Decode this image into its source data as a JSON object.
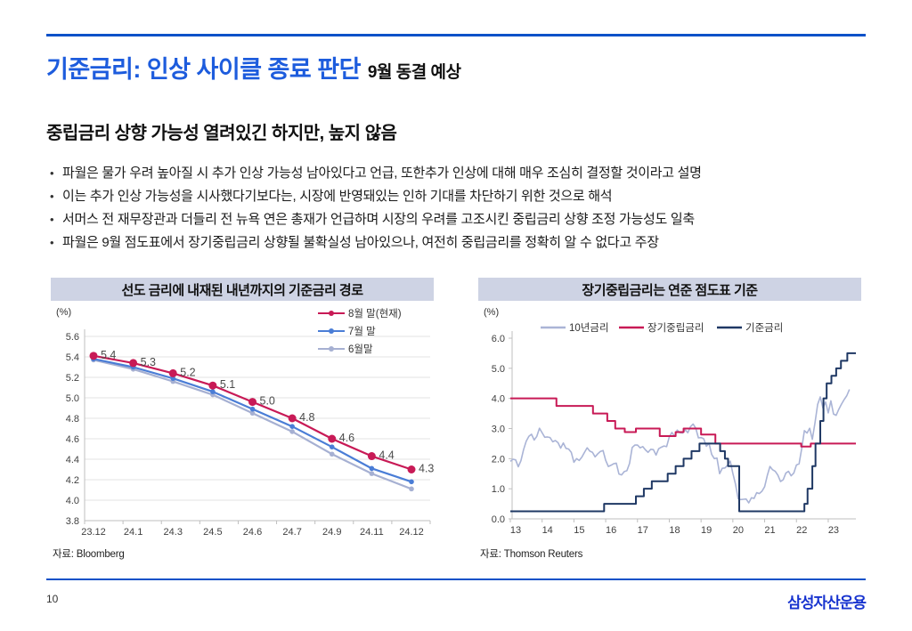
{
  "page": {
    "accent_rule_color": "#0b51c8",
    "title": "기준금리: 인상 사이클 종료 판단",
    "title_note": "9월 동결 예상",
    "title_color": "#1d5cdd",
    "section_heading": "중립금리 상향 가능성 열려있긴 하지만, 높지 않음",
    "bullets": [
      "파월은 물가 우려 높아질 시 추가 인상 가능성 남아있다고 언급, 또한추가 인상에 대해 매우 조심히 결정할 것이라고 설명",
      "이는 추가 인상 가능성을 시사했다기보다는, 시장에 반영돼있는 인하 기대를 차단하기 위한 것으로 해석",
      "서머스 전 재무장관과 더들리 전 뉴욕 연은 총재가 언급하며 시장의 우려를 고조시킨 중립금리 상향 조정 가능성도 일축",
      "파월은 9월 점도표에서 장기중립금리 상향될 불확실성 남아있으나, 여전히 중립금리를 정확히 알 수 없다고 주장"
    ],
    "page_number": "10",
    "logo_text": "삼성자산운용",
    "logo_color": "#1733cf"
  },
  "chart_data": [
    {
      "type": "line",
      "title": "선도 금리에 내재된 내년까지의 기준금리 경로",
      "source": "자료: Bloomberg",
      "unit_label": "(%)",
      "grid": true,
      "legend_position": "top-right",
      "categories": [
        "23.12",
        "24.1",
        "24.3",
        "24.5",
        "24.6",
        "24.7",
        "24.9",
        "24.11",
        "24.12"
      ],
      "ylim": [
        3.8,
        5.6
      ],
      "ytick_step": 0.2,
      "series": [
        {
          "name": "6월말",
          "color": "#a6b0d2",
          "marker_r": 2.8,
          "values": [
            5.37,
            5.28,
            5.16,
            5.03,
            4.85,
            4.67,
            4.45,
            4.26,
            4.11
          ]
        },
        {
          "name": "7월 말",
          "color": "#4a7dd6",
          "marker_r": 2.8,
          "values": [
            5.38,
            5.3,
            5.19,
            5.06,
            4.89,
            4.72,
            4.52,
            4.31,
            4.18
          ]
        },
        {
          "name": "8월 말(현재)",
          "color": "#c81a56",
          "marker_r": 4.5,
          "values": [
            5.41,
            5.34,
            5.24,
            5.12,
            4.96,
            4.8,
            4.6,
            4.43,
            4.3
          ],
          "labels": [
            "5.4",
            "5.3",
            "5.2",
            "5.1",
            "5.0",
            "4.8",
            "4.6",
            "4.4",
            "4.3"
          ]
        }
      ]
    },
    {
      "type": "line",
      "title": "장기중립금리는 연준 점도표 기준",
      "source": "자료: Thomson Reuters",
      "unit_label": "(%)",
      "grid": false,
      "legend_position": "top",
      "xlim": [
        13,
        23.87
      ],
      "xticks": [
        13,
        14,
        15,
        16,
        17,
        18,
        19,
        20,
        21,
        22,
        23
      ],
      "ylim": [
        0,
        6
      ],
      "ytick_step": 1,
      "series": [
        {
          "name": "10년금리",
          "color": "#aab4d6",
          "width": 1.6,
          "x_start": 13.0,
          "x_step": 0.0833333,
          "values": [
            1.91,
            1.98,
            1.96,
            1.73,
            1.93,
            2.3,
            2.58,
            2.74,
            2.81,
            2.62,
            2.74,
            3.01,
            2.86,
            2.71,
            2.72,
            2.7,
            2.56,
            2.6,
            2.53,
            2.35,
            2.52,
            2.34,
            2.32,
            2.21,
            1.88,
            2.0,
            1.94,
            2.05,
            2.21,
            2.36,
            2.25,
            2.21,
            2.06,
            2.16,
            2.24,
            2.27,
            1.94,
            1.74,
            1.78,
            1.83,
            1.85,
            1.49,
            1.46,
            1.57,
            1.6,
            1.84,
            2.37,
            2.45,
            2.45,
            2.36,
            2.4,
            2.29,
            2.21,
            2.31,
            2.3,
            2.12,
            2.33,
            2.38,
            2.42,
            2.4,
            2.72,
            2.87,
            2.74,
            2.95,
            2.86,
            2.85,
            2.96,
            2.86,
            3.06,
            3.15,
            3.01,
            2.69,
            2.7,
            2.66,
            2.41,
            2.51,
            2.14,
            2.0,
            2.02,
            1.5,
            1.68,
            1.69,
            1.78,
            1.92,
            1.51,
            1.15,
            0.67,
            0.64,
            0.65,
            0.66,
            0.53,
            0.7,
            0.68,
            0.87,
            0.84,
            0.92,
            1.07,
            1.44,
            1.74,
            1.63,
            1.58,
            1.45,
            1.24,
            1.3,
            1.52,
            1.58,
            1.43,
            1.52,
            1.79,
            1.83,
            2.34,
            2.93,
            2.85,
            3.01,
            2.64,
            3.19,
            3.8,
            4.05,
            3.68,
            3.88,
            3.52,
            3.92,
            3.48,
            3.44,
            3.64,
            3.81,
            3.96,
            4.09,
            4.3
          ]
        },
        {
          "name": "장기중립금리",
          "color": "#c81a56",
          "width": 2,
          "points": [
            [
              13,
              4.0
            ],
            [
              14.45,
              4.0
            ],
            [
              14.45,
              3.75
            ],
            [
              15.6,
              3.75
            ],
            [
              15.6,
              3.5
            ],
            [
              16.05,
              3.5
            ],
            [
              16.05,
              3.25
            ],
            [
              16.3,
              3.25
            ],
            [
              16.3,
              3.0
            ],
            [
              16.6,
              3.0
            ],
            [
              16.6,
              2.88
            ],
            [
              16.95,
              2.88
            ],
            [
              16.95,
              3.0
            ],
            [
              17.7,
              3.0
            ],
            [
              17.7,
              2.75
            ],
            [
              18.2,
              2.75
            ],
            [
              18.2,
              2.88
            ],
            [
              18.45,
              2.88
            ],
            [
              18.45,
              3.0
            ],
            [
              19.0,
              3.0
            ],
            [
              19.0,
              2.8
            ],
            [
              19.45,
              2.8
            ],
            [
              19.45,
              2.5
            ],
            [
              22.15,
              2.5
            ],
            [
              22.15,
              2.4
            ],
            [
              22.45,
              2.4
            ],
            [
              22.45,
              2.5
            ],
            [
              23.87,
              2.5
            ]
          ]
        },
        {
          "name": "기준금리",
          "color": "#1f3864",
          "width": 2,
          "points": [
            [
              13,
              0.25
            ],
            [
              15.95,
              0.25
            ],
            [
              15.95,
              0.5
            ],
            [
              16.95,
              0.5
            ],
            [
              16.95,
              0.75
            ],
            [
              17.2,
              0.75
            ],
            [
              17.2,
              1.0
            ],
            [
              17.45,
              1.0
            ],
            [
              17.45,
              1.25
            ],
            [
              17.95,
              1.25
            ],
            [
              17.95,
              1.5
            ],
            [
              18.2,
              1.5
            ],
            [
              18.2,
              1.75
            ],
            [
              18.45,
              1.75
            ],
            [
              18.45,
              2.0
            ],
            [
              18.7,
              2.0
            ],
            [
              18.7,
              2.25
            ],
            [
              18.95,
              2.25
            ],
            [
              18.95,
              2.5
            ],
            [
              19.6,
              2.5
            ],
            [
              19.6,
              2.25
            ],
            [
              19.75,
              2.25
            ],
            [
              19.75,
              2.0
            ],
            [
              19.85,
              2.0
            ],
            [
              19.85,
              1.75
            ],
            [
              20.2,
              1.75
            ],
            [
              20.2,
              0.25
            ],
            [
              22.25,
              0.25
            ],
            [
              22.25,
              0.5
            ],
            [
              22.35,
              0.5
            ],
            [
              22.35,
              1.0
            ],
            [
              22.5,
              1.0
            ],
            [
              22.5,
              1.75
            ],
            [
              22.6,
              1.75
            ],
            [
              22.6,
              2.5
            ],
            [
              22.75,
              2.5
            ],
            [
              22.75,
              3.25
            ],
            [
              22.85,
              3.25
            ],
            [
              22.85,
              4.0
            ],
            [
              22.95,
              4.0
            ],
            [
              22.95,
              4.5
            ],
            [
              23.1,
              4.5
            ],
            [
              23.1,
              4.75
            ],
            [
              23.25,
              4.75
            ],
            [
              23.25,
              5.0
            ],
            [
              23.4,
              5.0
            ],
            [
              23.4,
              5.25
            ],
            [
              23.6,
              5.25
            ],
            [
              23.6,
              5.5
            ],
            [
              23.87,
              5.5
            ]
          ]
        }
      ]
    }
  ]
}
